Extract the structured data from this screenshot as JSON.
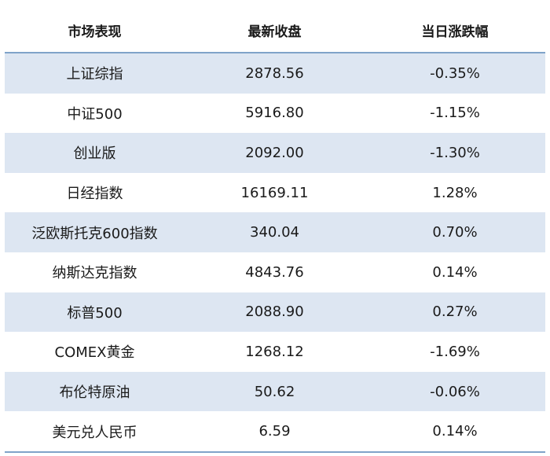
{
  "chart_data": {
    "type": "table",
    "columns": [
      "市场表现",
      "最新收盘",
      "当日涨跌幅"
    ],
    "rows": [
      [
        "上证综指",
        "2878.56",
        "-0.35%"
      ],
      [
        "中证500",
        "5916.80",
        "-1.15%"
      ],
      [
        "创业版",
        "2092.00",
        "-1.30%"
      ],
      [
        "日经指数",
        "16169.11",
        "1.28%"
      ],
      [
        "泛欧斯托克600指数",
        "340.04",
        "0.70%"
      ],
      [
        "纳斯达克指数",
        "4843.76",
        "0.14%"
      ],
      [
        "标普500",
        "2088.90",
        "0.27%"
      ],
      [
        "COMEX黄金",
        "1268.12",
        "-1.69%"
      ],
      [
        "布伦特原油",
        "50.62",
        "-0.06%"
      ],
      [
        "美元兑人民币",
        "6.59",
        "0.14%"
      ]
    ]
  },
  "colors": {
    "band": "#dde6f2",
    "rule": "#7fa3c9"
  }
}
